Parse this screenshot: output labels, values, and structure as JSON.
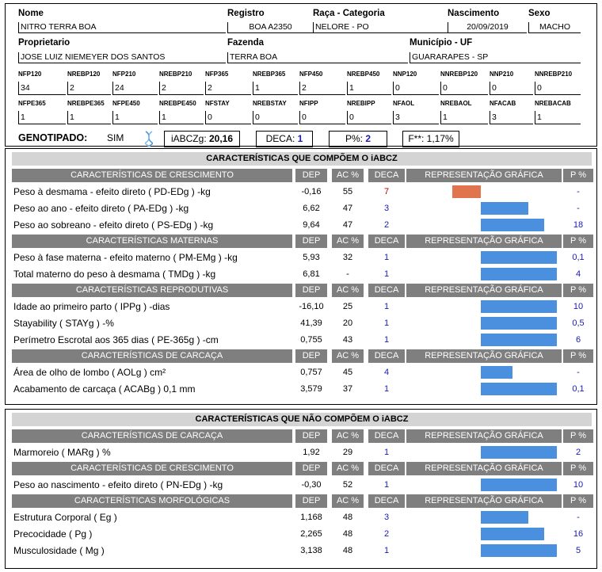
{
  "header": {
    "labels": {
      "nome": "Nome",
      "registro": "Registro",
      "raca": "Raça - Categoria",
      "nascimento": "Nascimento",
      "sexo": "Sexo",
      "proprietario": "Proprietario",
      "fazenda": "Fazenda",
      "municipio": "Município - UF"
    },
    "values": {
      "nome": "NITRO TERRA BOA",
      "registro": "BOA A2350",
      "raca": "NELORE - PO",
      "nascimento": "20/09/2019",
      "sexo": "MACHO",
      "proprietario": "JOSE LUIZ NIEMEYER DOS SANTOS",
      "fazenda": "TERRA BOA",
      "municipio": "GUARARAPES - SP"
    },
    "stats_row1": [
      {
        "label": "NFP120",
        "value": "34"
      },
      {
        "label": "NREBP120",
        "value": "2"
      },
      {
        "label": "NFP210",
        "value": "24"
      },
      {
        "label": "NREBP210",
        "value": "2"
      },
      {
        "label": "NFP365",
        "value": "2"
      },
      {
        "label": "NREBP365",
        "value": "1"
      },
      {
        "label": "NFP450",
        "value": "2"
      },
      {
        "label": "NREBP450",
        "value": "1"
      },
      {
        "label": "NNP120",
        "value": "0"
      },
      {
        "label": "NNREBP120",
        "value": "0"
      },
      {
        "label": "NNP210",
        "value": "0"
      },
      {
        "label": "NNREBP210",
        "value": "0"
      }
    ],
    "stats_row2": [
      {
        "label": "NFPE365",
        "value": "1"
      },
      {
        "label": "NREBPE365",
        "value": "1"
      },
      {
        "label": "NFPE450",
        "value": "1"
      },
      {
        "label": "NREBPE450",
        "value": "1"
      },
      {
        "label": "NFSTAY",
        "value": "0"
      },
      {
        "label": "NREBSTAY",
        "value": "0"
      },
      {
        "label": "NFIPP",
        "value": "0"
      },
      {
        "label": "NREBIPP",
        "value": "0"
      },
      {
        "label": "NFAOL",
        "value": "3"
      },
      {
        "label": "NREBAOL",
        "value": "1"
      },
      {
        "label": "NFACAB",
        "value": "3"
      },
      {
        "label": "NREBACAB",
        "value": "1"
      }
    ],
    "genotipado_label": "GENOTIPADO:",
    "genotipado_value": "SIM",
    "iabczg_label": "iABCZg:",
    "iabczg_value": "20,16",
    "deca_label": "DECA:",
    "deca_value": "1",
    "p_label": "P%:",
    "p_value": "2",
    "f_text": "F**: 1,17%"
  },
  "colors": {
    "bar_positive": "#4a90de",
    "bar_negative": "#e0744f",
    "subheader_gray": "#7f7f7f",
    "caption_gray": "#d4d4d4"
  },
  "column_headers": {
    "dep": "DEP",
    "ac": "AC %",
    "deca": "DECA",
    "rep": "REPRESENTAÇÃO GRÁFICA",
    "p": "P %"
  },
  "table1": {
    "caption": "CARACTERÍSTICAS QUE COMPÕEM O iABCZ",
    "sections": [
      {
        "title": "CARACTERÍSTICAS DE CRESCIMENTO",
        "rows": [
          {
            "label": "Peso à desmama - efeito direto ( PD-EDg ) -kg",
            "dep": "-0,16",
            "ac": "55",
            "deca": "7",
            "p": "-",
            "bar": -0.09
          },
          {
            "label": "Peso ao ano - efeito direto ( PA-EDg ) -kg",
            "dep": "6,62",
            "ac": "47",
            "deca": "3",
            "p": "-",
            "bar": 0.15
          },
          {
            "label": "Peso ao sobreano - efeito direto ( PS-EDg ) -kg",
            "dep": "9,64",
            "ac": "47",
            "deca": "2",
            "p": "18",
            "bar": 0.2
          }
        ]
      },
      {
        "title": "CARACTERÍSTICAS MATERNAS",
        "rows": [
          {
            "label": "Peso à fase materna - efeito materno ( PM-EMg ) -kg",
            "dep": "5,93",
            "ac": "32",
            "deca": "1",
            "p": "0,1",
            "bar": 0.24
          },
          {
            "label": "Total materno do peso à desmama ( TMDg ) -kg",
            "dep": "6,81",
            "ac": "-",
            "deca": "1",
            "p": "4",
            "bar": 0.24
          }
        ]
      },
      {
        "title": "CARACTERÍSTICAS REPRODUTIVAS",
        "rows": [
          {
            "label": "Idade ao primeiro parto ( IPPg ) -dias",
            "dep": "-16,10",
            "ac": "25",
            "deca": "1",
            "p": "10",
            "bar": 0.24
          },
          {
            "label": "Stayability ( STAYg ) -%",
            "dep": "41,39",
            "ac": "20",
            "deca": "1",
            "p": "0,5",
            "bar": 0.24
          },
          {
            "label": "Perímetro Escrotal aos 365 dias ( PE-365g ) -cm",
            "dep": "0,755",
            "ac": "43",
            "deca": "1",
            "p": "6",
            "bar": 0.24
          }
        ]
      },
      {
        "title": "CARACTERÍSTICAS DE CARCAÇA",
        "rows": [
          {
            "label": "Área de olho de lombo ( AOLg ) cm²",
            "dep": "0,757",
            "ac": "45",
            "deca": "4",
            "p": "-",
            "bar": 0.1
          },
          {
            "label": "Acabamento de carcaça ( ACABg ) 0,1 mm",
            "dep": "3,579",
            "ac": "37",
            "deca": "1",
            "p": "0,1",
            "bar": 0.24
          }
        ]
      }
    ]
  },
  "table2": {
    "caption": "CARACTERÍSTICAS QUE NÃO COMPÕEM O iABCZ",
    "sections": [
      {
        "title": "CARACTERÍSTICAS DE CARCAÇA",
        "rows": [
          {
            "label": "Marmoreio ( MARg ) %",
            "dep": "1,92",
            "ac": "29",
            "deca": "1",
            "p": "2",
            "bar": 0.24
          }
        ]
      },
      {
        "title": "CARACTERÍSTICAS DE CRESCIMENTO",
        "rows": [
          {
            "label": "Peso ao nascimento - efeito direto ( PN-EDg ) -kg",
            "dep": "-0,30",
            "ac": "52",
            "deca": "1",
            "p": "10",
            "bar": 0.24
          }
        ]
      },
      {
        "title": "CARACTERÍSTICAS MORFOLÓGICAS",
        "rows": [
          {
            "label": "Estrutura Corporal ( Eg )",
            "dep": "1,168",
            "ac": "48",
            "deca": "3",
            "p": "-",
            "bar": 0.15
          },
          {
            "label": "Precocidade ( Pg )",
            "dep": "2,265",
            "ac": "48",
            "deca": "2",
            "p": "16",
            "bar": 0.2
          },
          {
            "label": "Musculosidade ( Mg )",
            "dep": "3,138",
            "ac": "48",
            "deca": "1",
            "p": "5",
            "bar": 0.24
          }
        ]
      }
    ]
  }
}
